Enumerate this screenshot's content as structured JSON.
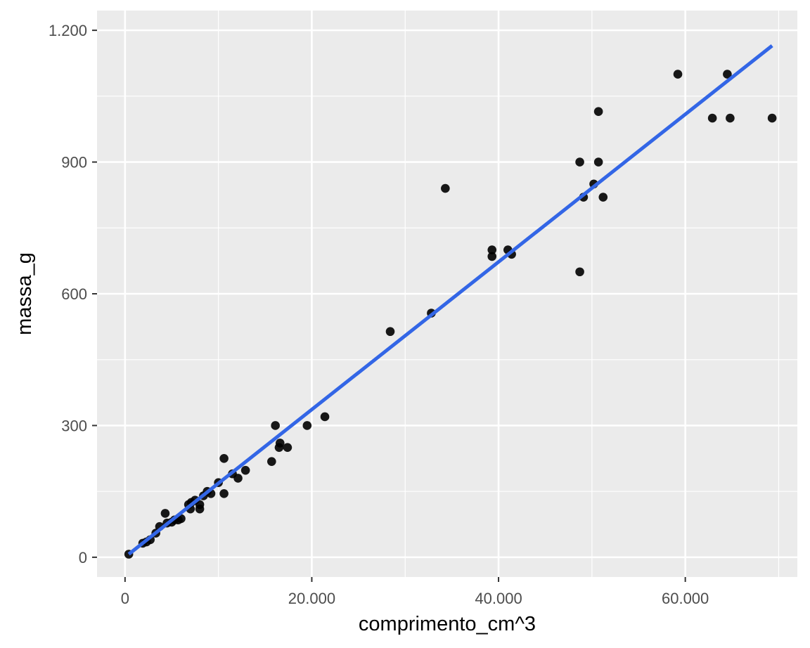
{
  "chart_data": {
    "type": "scatter",
    "title": "",
    "xlabel": "comprimento_cm^3",
    "ylabel": "massa_g",
    "xlim": [
      -3000,
      72000
    ],
    "ylim": [
      -45,
      1245
    ],
    "x_ticks": [
      0,
      20000,
      40000,
      60000
    ],
    "x_tick_labels": [
      "0",
      "20.000",
      "40.000",
      "60.000"
    ],
    "y_ticks": [
      0,
      300,
      600,
      900,
      1200
    ],
    "y_tick_labels": [
      "0",
      "300",
      "600",
      "900",
      "1.200"
    ],
    "grid": true,
    "background": "#ebebeb",
    "point_color": "#000000",
    "line_color": "#3366e6",
    "points": [
      [
        400,
        7
      ],
      [
        1900,
        32
      ],
      [
        2300,
        35
      ],
      [
        2700,
        40
      ],
      [
        3300,
        55
      ],
      [
        3700,
        70
      ],
      [
        4300,
        100
      ],
      [
        4500,
        78
      ],
      [
        5000,
        80
      ],
      [
        5300,
        85
      ],
      [
        5700,
        85
      ],
      [
        6000,
        88
      ],
      [
        6800,
        120
      ],
      [
        7000,
        110
      ],
      [
        7100,
        125
      ],
      [
        7500,
        130
      ],
      [
        8000,
        120
      ],
      [
        8000,
        110
      ],
      [
        8400,
        140
      ],
      [
        8800,
        150
      ],
      [
        9200,
        145
      ],
      [
        10000,
        170
      ],
      [
        10600,
        225
      ],
      [
        10600,
        145
      ],
      [
        11500,
        190
      ],
      [
        12100,
        180
      ],
      [
        12900,
        198
      ],
      [
        15700,
        218
      ],
      [
        16100,
        300
      ],
      [
        16500,
        250
      ],
      [
        16600,
        260
      ],
      [
        17400,
        250
      ],
      [
        19500,
        300
      ],
      [
        21400,
        320
      ],
      [
        28400,
        514
      ],
      [
        32800,
        556
      ],
      [
        34300,
        840
      ],
      [
        39300,
        685
      ],
      [
        39300,
        700
      ],
      [
        41000,
        700
      ],
      [
        41400,
        690
      ],
      [
        48700,
        650
      ],
      [
        48700,
        900
      ],
      [
        49100,
        820
      ],
      [
        50200,
        850
      ],
      [
        50700,
        1015
      ],
      [
        50700,
        900
      ],
      [
        51200,
        820
      ],
      [
        59200,
        1100
      ],
      [
        62900,
        1000
      ],
      [
        64500,
        1100
      ],
      [
        64800,
        1000
      ],
      [
        69300,
        1000
      ]
    ],
    "fit_line": {
      "x": [
        400,
        69300
      ],
      "y": [
        7,
        1165
      ]
    }
  }
}
